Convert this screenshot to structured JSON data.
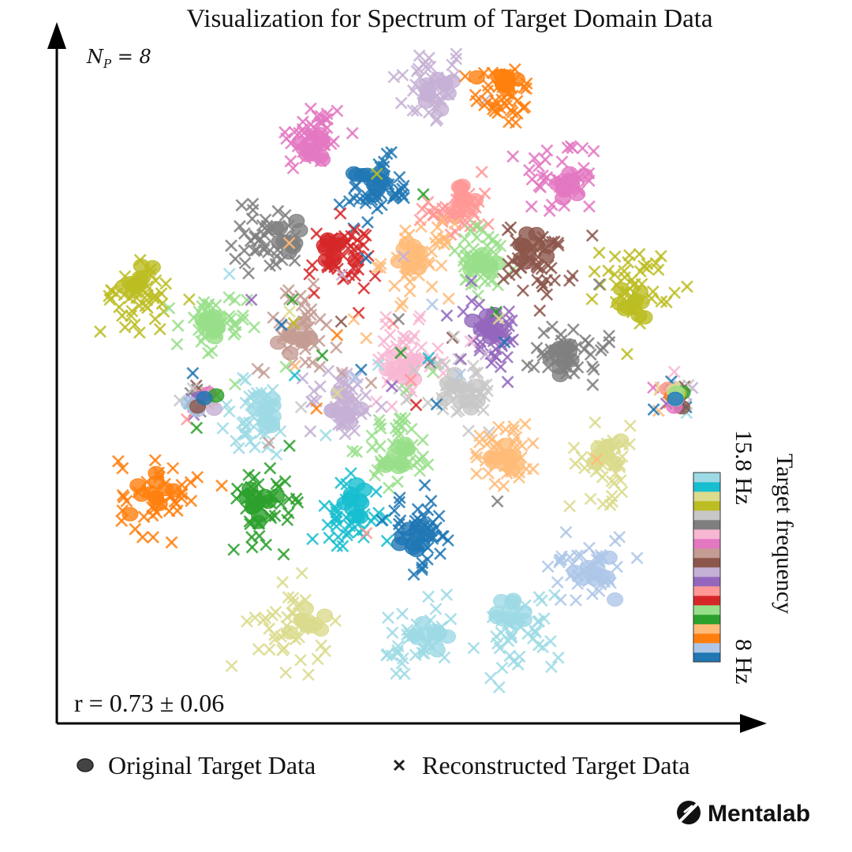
{
  "chart_data": {
    "type": "scatter",
    "title": "Visualization for Spectrum of Target Domain Data",
    "annotation_np": {
      "symbol": "N",
      "subscript": "P",
      "rest": " = 8"
    },
    "annotation_r": "r = 0.73 ± 0.06",
    "legend": [
      {
        "label": "Original Target Data",
        "marker": "circle"
      },
      {
        "label": "Reconstructed Target Data",
        "marker": "x"
      }
    ],
    "colorbar": {
      "label": "Target frequency",
      "max_label": "15.8 Hz",
      "min_label": "8 Hz",
      "colors": [
        "#1f77b4",
        "#aec7e8",
        "#ff7f0e",
        "#ffbb78",
        "#2ca02c",
        "#98df8a",
        "#d62728",
        "#ff9896",
        "#9467bd",
        "#c5b0d5",
        "#8c564b",
        "#c49c94",
        "#e377c2",
        "#f7b6d2",
        "#7f7f7f",
        "#c7c7c7",
        "#bcbd22",
        "#dbdb8d",
        "#17becf",
        "#9edae5"
      ]
    },
    "clusters": [
      {
        "color": "#c5b0d5",
        "cx": 0.2,
        "cy": 0.92,
        "spread": 0.045,
        "circle_offset": [
          0.02,
          -0.02
        ]
      },
      {
        "color": "#ff7f0e",
        "cx": 0.37,
        "cy": 0.9,
        "spread": 0.035,
        "circle_offset": [
          0.0,
          0.03
        ]
      },
      {
        "color": "#e377c2",
        "cx": -0.07,
        "cy": 0.81,
        "spread": 0.04,
        "circle_offset": [
          0.01,
          -0.02
        ]
      },
      {
        "color": "#e377c2",
        "cx": 0.5,
        "cy": 0.72,
        "spread": 0.045,
        "circle_offset": [
          0.02,
          -0.02
        ]
      },
      {
        "color": "#1f77b4",
        "cx": 0.08,
        "cy": 0.69,
        "spread": 0.035,
        "circle_offset": [
          -0.02,
          0.02
        ]
      },
      {
        "color": "#ff9896",
        "cx": 0.27,
        "cy": 0.65,
        "spread": 0.035,
        "circle_offset": [
          0.0,
          0.02
        ]
      },
      {
        "color": "#7f7f7f",
        "cx": -0.17,
        "cy": 0.59,
        "spread": 0.04,
        "circle_offset": [
          0.03,
          0.0
        ]
      },
      {
        "color": "#d62728",
        "cx": 0.0,
        "cy": 0.54,
        "spread": 0.04,
        "circle_offset": [
          -0.02,
          0.02
        ]
      },
      {
        "color": "#ffbb78",
        "cx": 0.17,
        "cy": 0.54,
        "spread": 0.04,
        "circle_offset": [
          0.0,
          0.01
        ]
      },
      {
        "color": "#98df8a",
        "cx": 0.32,
        "cy": 0.53,
        "spread": 0.04,
        "circle_offset": [
          0.0,
          0.0
        ]
      },
      {
        "color": "#8c564b",
        "cx": 0.45,
        "cy": 0.54,
        "spread": 0.04,
        "circle_offset": [
          -0.02,
          0.02
        ]
      },
      {
        "color": "#bcbd22",
        "cx": -0.47,
        "cy": 0.46,
        "spread": 0.04,
        "circle_offset": [
          0.01,
          0.04
        ]
      },
      {
        "color": "#bcbd22",
        "cx": 0.67,
        "cy": 0.49,
        "spread": 0.04,
        "circle_offset": [
          0.0,
          -0.04
        ]
      },
      {
        "color": "#98df8a",
        "cx": -0.3,
        "cy": 0.39,
        "spread": 0.04,
        "circle_offset": [
          0.0,
          0.01
        ]
      },
      {
        "color": "#c49c94",
        "cx": -0.1,
        "cy": 0.39,
        "spread": 0.045,
        "circle_offset": [
          0.0,
          -0.02
        ]
      },
      {
        "color": "#f7b6d2",
        "cx": 0.14,
        "cy": 0.32,
        "spread": 0.04,
        "circle_offset": [
          0.0,
          -0.01
        ]
      },
      {
        "color": "#9467bd",
        "cx": 0.34,
        "cy": 0.38,
        "spread": 0.04,
        "circle_offset": [
          -0.01,
          0.01
        ]
      },
      {
        "color": "#7f7f7f",
        "cx": 0.52,
        "cy": 0.35,
        "spread": 0.04,
        "circle_offset": [
          -0.01,
          -0.02
        ]
      },
      {
        "color": "#c5b0d5",
        "cx": 0.0,
        "cy": 0.23,
        "spread": 0.04,
        "circle_offset": [
          0.0,
          -0.01
        ]
      },
      {
        "color": "#c7c7c7",
        "cx": 0.27,
        "cy": 0.25,
        "spread": 0.045,
        "circle_offset": [
          0.01,
          0.0
        ]
      },
      {
        "color": "#9edae5",
        "cx": -0.2,
        "cy": 0.19,
        "spread": 0.045,
        "circle_offset": [
          0.03,
          0.02
        ]
      },
      {
        "color": "#98df8a",
        "cx": 0.13,
        "cy": 0.13,
        "spread": 0.04,
        "circle_offset": [
          0.0,
          -0.02
        ]
      },
      {
        "color": "#ffbb78",
        "cx": 0.37,
        "cy": 0.13,
        "spread": 0.04,
        "circle_offset": [
          0.01,
          -0.02
        ]
      },
      {
        "color": "#dbdb8d",
        "cx": 0.6,
        "cy": 0.1,
        "spread": 0.04,
        "circle_offset": [
          0.0,
          0.02
        ]
      },
      {
        "color": "#ff7f0e",
        "cx": -0.42,
        "cy": 0.03,
        "spread": 0.045,
        "circle_offset": [
          0.0,
          0.0
        ]
      },
      {
        "color": "#2ca02c",
        "cx": -0.17,
        "cy": 0.02,
        "spread": 0.045,
        "circle_offset": [
          -0.02,
          -0.02
        ]
      },
      {
        "color": "#17becf",
        "cx": 0.01,
        "cy": -0.02,
        "spread": 0.04,
        "circle_offset": [
          0.02,
          0.03
        ]
      },
      {
        "color": "#1f77b4",
        "cx": 0.18,
        "cy": -0.05,
        "spread": 0.04,
        "circle_offset": [
          -0.02,
          -0.02
        ]
      },
      {
        "color": "#aec7e8",
        "cx": 0.56,
        "cy": -0.12,
        "spread": 0.045,
        "circle_offset": [
          0.02,
          -0.02
        ]
      },
      {
        "color": "#dbdb8d",
        "cx": -0.12,
        "cy": -0.26,
        "spread": 0.045,
        "circle_offset": [
          0.04,
          0.02
        ]
      },
      {
        "color": "#9edae5",
        "cx": 0.17,
        "cy": -0.3,
        "spread": 0.045,
        "circle_offset": [
          0.03,
          0.02
        ]
      },
      {
        "color": "#9edae5",
        "cx": 0.41,
        "cy": -0.27,
        "spread": 0.045,
        "circle_offset": [
          -0.02,
          0.04
        ]
      }
    ],
    "mixed_clusters": [
      {
        "cx": -0.33,
        "cy": 0.23,
        "spread": 0.025
      },
      {
        "cx": 0.76,
        "cy": 0.25,
        "spread": 0.022
      }
    ],
    "xlim": [
      -0.62,
      0.92
    ],
    "ylim": [
      -0.43,
      1.02
    ]
  },
  "branding": {
    "logo_text": "Mentalab"
  }
}
